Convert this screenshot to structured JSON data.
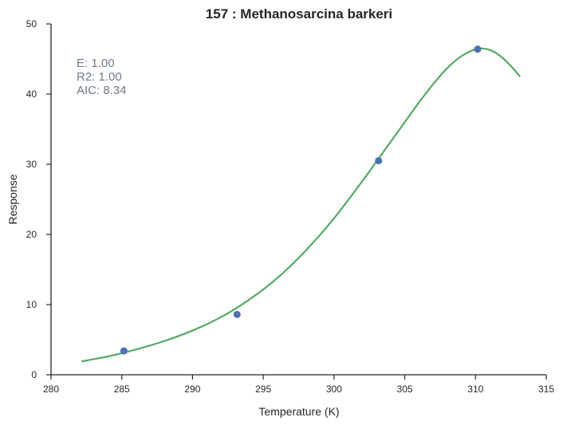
{
  "chart_data": {
    "type": "scatter",
    "title": "157 : Methanosarcina barkeri",
    "xlabel": "Temperature (K)",
    "ylabel": "Response",
    "xlim": [
      280,
      315
    ],
    "ylim": [
      0,
      50
    ],
    "xticks": [
      280,
      285,
      290,
      295,
      300,
      305,
      310,
      315
    ],
    "yticks": [
      0,
      10,
      20,
      30,
      40,
      50
    ],
    "points": {
      "x": [
        285.15,
        293.15,
        303.15,
        310.15
      ],
      "y": [
        3.4,
        8.6,
        30.5,
        46.4
      ],
      "color": "#4c72b0"
    },
    "fit": {
      "x": [
        282.15,
        284,
        286,
        288,
        290,
        292,
        294,
        296,
        298,
        300,
        302,
        304,
        305,
        306,
        307,
        308,
        309,
        310,
        310.5,
        311,
        311.5,
        312,
        312.5,
        313.15
      ],
      "y": [
        1.9,
        2.6,
        3.6,
        4.8,
        6.3,
        8.2,
        10.7,
        13.8,
        17.7,
        22.3,
        27.6,
        33.2,
        36.0,
        38.8,
        41.4,
        43.7,
        45.4,
        46.4,
        46.5,
        46.3,
        45.8,
        45.0,
        44.0,
        42.5
      ],
      "color": "#55a868"
    },
    "annotations": [
      "E:  1.00",
      "R2:  1.00",
      "AIC: 8.34"
    ],
    "grid": false
  }
}
